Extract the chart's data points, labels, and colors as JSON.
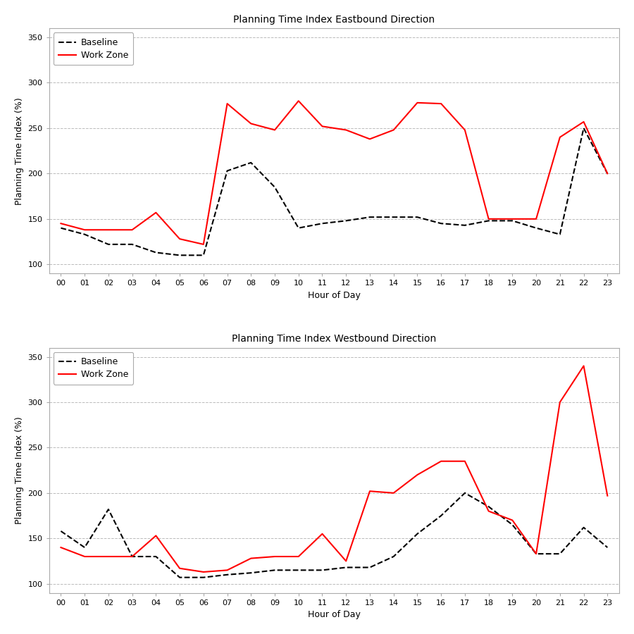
{
  "hours": [
    0,
    1,
    2,
    3,
    4,
    5,
    6,
    7,
    8,
    9,
    10,
    11,
    12,
    13,
    14,
    15,
    16,
    17,
    18,
    19,
    20,
    21,
    22,
    23
  ],
  "hour_labels": [
    "00",
    "01",
    "02",
    "03",
    "04",
    "05",
    "06",
    "07",
    "08",
    "09",
    "10",
    "11",
    "12",
    "13",
    "14",
    "15",
    "16",
    "17",
    "18",
    "19",
    "20",
    "21",
    "22",
    "23"
  ],
  "eb_baseline": [
    140,
    133,
    122,
    122,
    113,
    110,
    110,
    203,
    212,
    185,
    140,
    145,
    148,
    152,
    152,
    152,
    145,
    143,
    148,
    148,
    140,
    133,
    250,
    200
  ],
  "eb_workzone": [
    145,
    138,
    138,
    138,
    157,
    128,
    122,
    277,
    255,
    248,
    280,
    252,
    248,
    238,
    248,
    278,
    277,
    248,
    150,
    150,
    150,
    240,
    257,
    200
  ],
  "wb_baseline": [
    158,
    140,
    182,
    130,
    130,
    107,
    107,
    110,
    112,
    115,
    115,
    115,
    118,
    118,
    130,
    155,
    175,
    200,
    185,
    165,
    133,
    133,
    162,
    140
  ],
  "wb_workzone": [
    140,
    130,
    130,
    130,
    153,
    117,
    113,
    115,
    128,
    130,
    130,
    155,
    125,
    202,
    200,
    220,
    235,
    235,
    180,
    170,
    133,
    300,
    340,
    197
  ],
  "title_eb": "Planning Time Index Eastbound Direction",
  "title_wb": "Planning Time Index Westbound Direction",
  "xlabel": "Hour of Day",
  "ylabel": "Planning Time Index (%)",
  "ylim": [
    90,
    360
  ],
  "yticks": [
    100,
    150,
    200,
    250,
    300,
    350
  ],
  "baseline_color": "#000000",
  "workzone_color": "#ff0000",
  "baseline_label": "Baseline",
  "workzone_label": "Work Zone",
  "grid_color": "#bbbbbb",
  "spine_color": "#aaaaaa",
  "background_color": "#ffffff",
  "title_fontsize": 10,
  "label_fontsize": 9,
  "tick_fontsize": 8,
  "legend_fontsize": 9,
  "line_width": 1.5
}
